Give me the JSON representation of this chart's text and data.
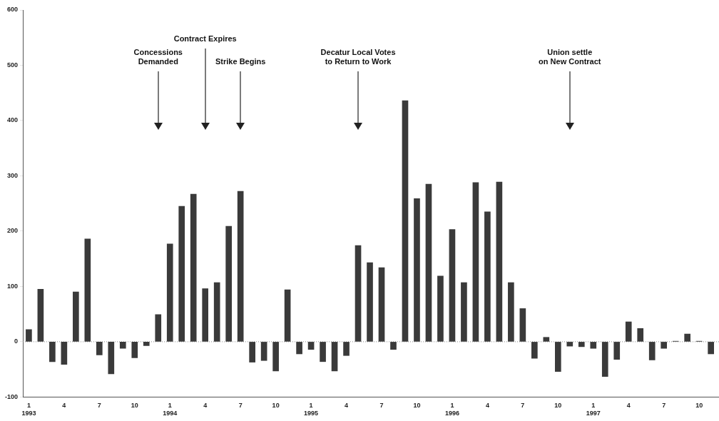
{
  "chart_data": {
    "type": "bar",
    "x": [
      "1993-01",
      "1993-02",
      "1993-03",
      "1993-04",
      "1993-05",
      "1993-06",
      "1993-07",
      "1993-08",
      "1993-09",
      "1993-10",
      "1993-11",
      "1993-12",
      "1994-01",
      "1994-02",
      "1994-03",
      "1994-04",
      "1994-05",
      "1994-06",
      "1994-07",
      "1994-08",
      "1994-09",
      "1994-10",
      "1994-11",
      "1994-12",
      "1995-01",
      "1995-02",
      "1995-03",
      "1995-04",
      "1995-05",
      "1995-06",
      "1995-07",
      "1995-08",
      "1995-09",
      "1995-10",
      "1995-11",
      "1995-12",
      "1996-01",
      "1996-02",
      "1996-03",
      "1996-04",
      "1996-05",
      "1996-06",
      "1996-07",
      "1996-08",
      "1996-09",
      "1996-10",
      "1996-11",
      "1996-12",
      "1997-01",
      "1997-02",
      "1997-03",
      "1997-04",
      "1997-05",
      "1997-06",
      "1997-07",
      "1997-08",
      "1997-09",
      "1997-10",
      "1997-11"
    ],
    "values": [
      22,
      95,
      -36,
      -41,
      90,
      186,
      -24,
      -58,
      -12,
      -29,
      -7,
      49,
      177,
      245,
      267,
      96,
      107,
      209,
      272,
      -37,
      -34,
      -53,
      94,
      -22,
      -14,
      -36,
      -53,
      -25,
      174,
      143,
      134,
      -14,
      436,
      259,
      285,
      119,
      203,
      107,
      288,
      235,
      289,
      107,
      60,
      -30,
      8,
      -54,
      -8,
      -9,
      -12,
      -63,
      -32,
      36,
      24,
      -33,
      -12,
      1,
      14,
      1,
      -22
    ],
    "color": "#3a3a3a",
    "ylim": [
      -100,
      600
    ],
    "yticks": [
      -100,
      0,
      100,
      200,
      300,
      400,
      500,
      600
    ],
    "xlim": [
      "1992-12-16",
      "1997-11-22"
    ],
    "xticks": [
      {
        "value": "1993-01",
        "label": "1\n1993"
      },
      {
        "value": "1993-04",
        "label": "4"
      },
      {
        "value": "1993-07",
        "label": "7"
      },
      {
        "value": "1993-10",
        "label": "10"
      },
      {
        "value": "1994-01",
        "label": "1\n1994"
      },
      {
        "value": "1994-04",
        "label": "4"
      },
      {
        "value": "1994-07",
        "label": "7"
      },
      {
        "value": "1994-10",
        "label": "10"
      },
      {
        "value": "1995-01",
        "label": "1\n1995"
      },
      {
        "value": "1995-04",
        "label": "4"
      },
      {
        "value": "1995-07",
        "label": "7"
      },
      {
        "value": "1995-10",
        "label": "10"
      },
      {
        "value": "1996-01",
        "label": "1\n1996"
      },
      {
        "value": "1996-04",
        "label": "4"
      },
      {
        "value": "1996-07",
        "label": "7"
      },
      {
        "value": "1996-10",
        "label": "10"
      },
      {
        "value": "1997-01",
        "label": "1\n1997"
      },
      {
        "value": "1997-04",
        "label": "4"
      },
      {
        "value": "1997-07",
        "label": "7"
      },
      {
        "value": "1997-10",
        "label": "10"
      }
    ],
    "ref_lines": [
      {
        "axis": "y",
        "value": 0,
        "line_style": "dotted",
        "color": "#888888"
      },
      {
        "axis": "x",
        "value": "1993-12",
        "label": "Concessions\nDemanded",
        "color": "#222222"
      },
      {
        "axis": "x",
        "value": "1994-04",
        "label": "Contract Expires",
        "color": "#222222"
      },
      {
        "axis": "x",
        "value": "1994-07",
        "label": "Strike Begins",
        "color": "#222222"
      },
      {
        "axis": "x",
        "value": "1995-05",
        "label": "Decatur Local Votes\nto Return to Work",
        "color": "#222222"
      },
      {
        "axis": "x",
        "value": "1996-11",
        "label": "Union settle\non New Contract",
        "color": "#222222"
      }
    ],
    "grid": false,
    "legend": false
  }
}
